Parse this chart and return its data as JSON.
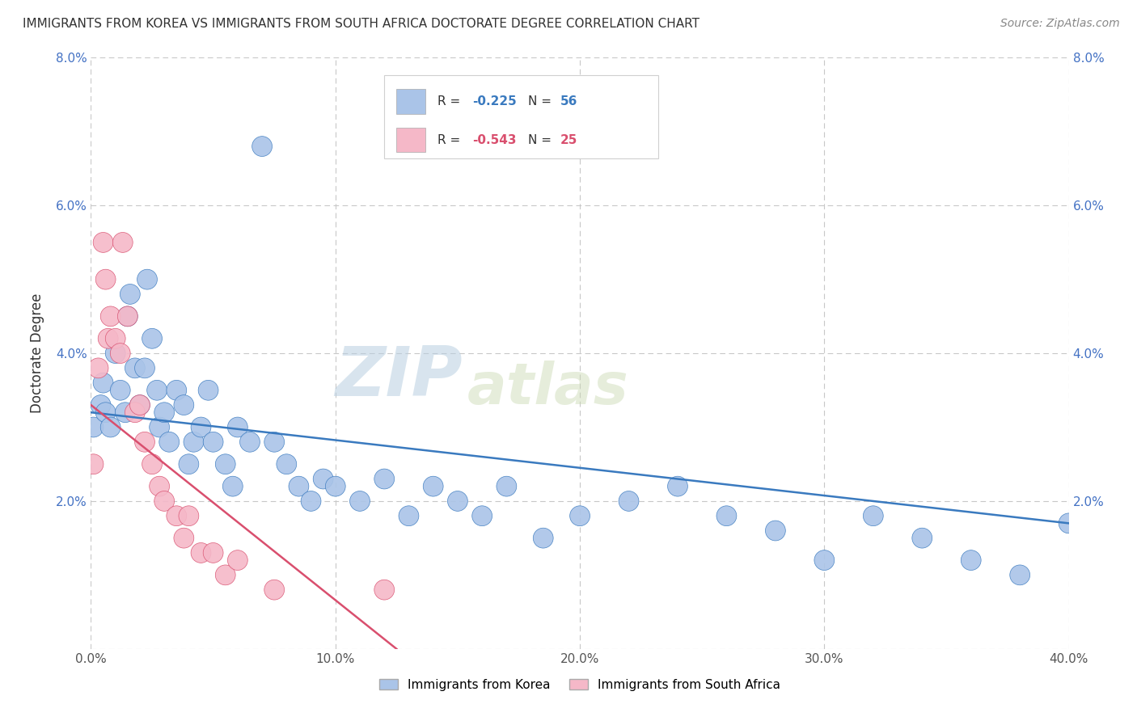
{
  "title": "IMMIGRANTS FROM KOREA VS IMMIGRANTS FROM SOUTH AFRICA DOCTORATE DEGREE CORRELATION CHART",
  "source": "Source: ZipAtlas.com",
  "ylabel": "Doctorate Degree",
  "xlim": [
    0.0,
    0.4
  ],
  "ylim": [
    0.0,
    0.08
  ],
  "xtick_vals": [
    0.0,
    0.1,
    0.2,
    0.3,
    0.4
  ],
  "ytick_vals": [
    0.0,
    0.02,
    0.04,
    0.06,
    0.08
  ],
  "ytick_labels": [
    "",
    "2.0%",
    "4.0%",
    "6.0%",
    "8.0%"
  ],
  "korea_color": "#aac4e8",
  "south_africa_color": "#f5b8c8",
  "korea_line_color": "#3a7abf",
  "south_africa_line_color": "#d94f6e",
  "korea_R": -0.225,
  "korea_N": 56,
  "south_africa_R": -0.543,
  "south_africa_N": 25,
  "watermark_zip": "ZIP",
  "watermark_atlas": "atlas",
  "background_color": "#ffffff",
  "grid_color": "#c8c8c8",
  "korea_x": [
    0.001,
    0.004,
    0.005,
    0.006,
    0.008,
    0.01,
    0.012,
    0.014,
    0.015,
    0.016,
    0.018,
    0.02,
    0.022,
    0.023,
    0.025,
    0.027,
    0.028,
    0.03,
    0.032,
    0.035,
    0.038,
    0.04,
    0.042,
    0.045,
    0.048,
    0.05,
    0.055,
    0.058,
    0.06,
    0.065,
    0.07,
    0.075,
    0.08,
    0.085,
    0.09,
    0.095,
    0.1,
    0.11,
    0.12,
    0.13,
    0.14,
    0.15,
    0.16,
    0.17,
    0.185,
    0.2,
    0.22,
    0.24,
    0.26,
    0.28,
    0.3,
    0.32,
    0.34,
    0.36,
    0.38,
    0.4
  ],
  "korea_y": [
    0.03,
    0.033,
    0.036,
    0.032,
    0.03,
    0.04,
    0.035,
    0.032,
    0.045,
    0.048,
    0.038,
    0.033,
    0.038,
    0.05,
    0.042,
    0.035,
    0.03,
    0.032,
    0.028,
    0.035,
    0.033,
    0.025,
    0.028,
    0.03,
    0.035,
    0.028,
    0.025,
    0.022,
    0.03,
    0.028,
    0.068,
    0.028,
    0.025,
    0.022,
    0.02,
    0.023,
    0.022,
    0.02,
    0.023,
    0.018,
    0.022,
    0.02,
    0.018,
    0.022,
    0.015,
    0.018,
    0.02,
    0.022,
    0.018,
    0.016,
    0.012,
    0.018,
    0.015,
    0.012,
    0.01,
    0.017
  ],
  "korea_size": [
    40,
    40,
    40,
    40,
    40,
    40,
    40,
    40,
    40,
    40,
    40,
    40,
    40,
    40,
    40,
    40,
    40,
    40,
    40,
    40,
    40,
    40,
    40,
    40,
    40,
    40,
    40,
    40,
    40,
    40,
    40,
    40,
    40,
    40,
    40,
    40,
    40,
    40,
    40,
    40,
    40,
    40,
    40,
    40,
    40,
    40,
    40,
    40,
    40,
    40,
    40,
    40,
    40,
    40,
    40,
    40
  ],
  "sa_x": [
    0.001,
    0.003,
    0.005,
    0.006,
    0.007,
    0.008,
    0.01,
    0.012,
    0.013,
    0.015,
    0.018,
    0.02,
    0.022,
    0.025,
    0.028,
    0.03,
    0.035,
    0.038,
    0.04,
    0.045,
    0.05,
    0.055,
    0.06,
    0.075,
    0.12
  ],
  "sa_y": [
    0.025,
    0.038,
    0.055,
    0.05,
    0.042,
    0.045,
    0.042,
    0.04,
    0.055,
    0.045,
    0.032,
    0.033,
    0.028,
    0.025,
    0.022,
    0.02,
    0.018,
    0.015,
    0.018,
    0.013,
    0.013,
    0.01,
    0.012,
    0.008,
    0.008
  ],
  "sa_size": [
    40,
    40,
    40,
    40,
    40,
    40,
    40,
    40,
    40,
    40,
    40,
    40,
    40,
    40,
    40,
    40,
    40,
    40,
    40,
    40,
    40,
    40,
    40,
    40,
    40
  ],
  "korea_line_x0": 0.0,
  "korea_line_y0": 0.032,
  "korea_line_x1": 0.4,
  "korea_line_y1": 0.017,
  "sa_line_x0": 0.0,
  "sa_line_y0": 0.033,
  "sa_line_x1": 0.125,
  "sa_line_y1": 0.0
}
